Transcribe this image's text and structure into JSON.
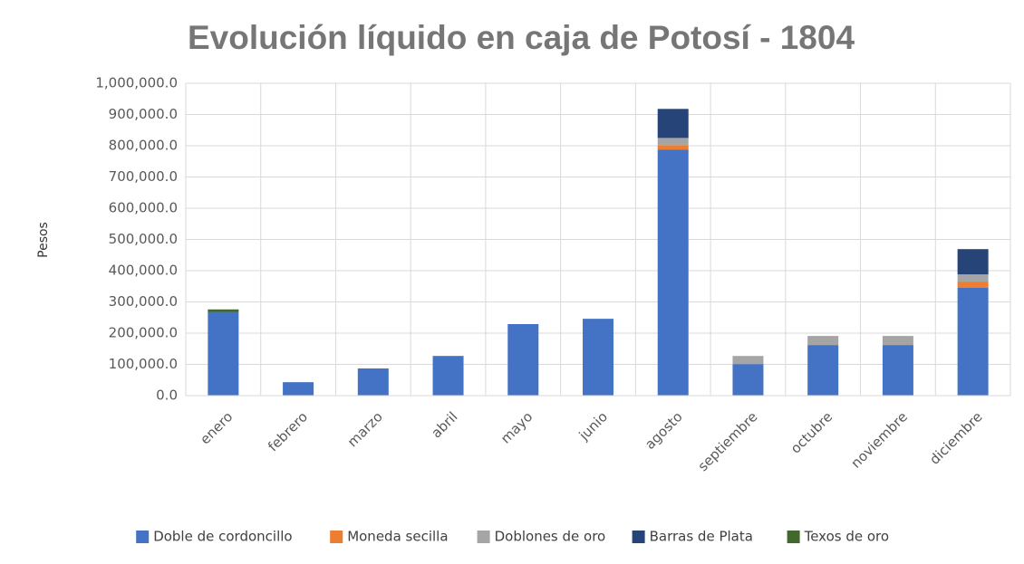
{
  "chart_data": {
    "type": "stacked_bar",
    "title": "Evolución líquido en caja de Potosí - 1804",
    "y_label": "Pesos",
    "categories": [
      "enero",
      "febrero",
      "marzo",
      "abril",
      "mayo",
      "junio",
      "agosto",
      "septiembre",
      "octubre",
      "noviembre",
      "diciembre"
    ],
    "series": [
      {
        "name": "Doble de cordoncillo",
        "color": "#4472c4",
        "values": [
          268000,
          43000,
          87000,
          127000,
          229000,
          246000,
          788000,
          101000,
          162000,
          162000,
          345000
        ]
      },
      {
        "name": "Moneda secilla",
        "color": "#ed7d31",
        "values": [
          null,
          null,
          null,
          null,
          null,
          null,
          14000,
          null,
          null,
          null,
          20000
        ]
      },
      {
        "name": "Doblones de oro",
        "color": "#a5a5a5",
        "values": [
          null,
          null,
          null,
          null,
          null,
          null,
          23000,
          26000,
          29000,
          29000,
          23000
        ]
      },
      {
        "name": "Barras de Plata",
        "color": "#264478",
        "values": [
          null,
          null,
          null,
          null,
          null,
          null,
          93000,
          null,
          null,
          null,
          81000
        ]
      },
      {
        "name": "Texos de oro",
        "color": "#43682b",
        "values": [
          8000,
          null,
          null,
          null,
          null,
          null,
          null,
          null,
          null,
          null,
          null
        ]
      }
    ],
    "ylim": [
      0,
      1000000
    ],
    "yticks": [
      {
        "value": 0,
        "label": "0.0"
      },
      {
        "value": 100000,
        "label": "100,000.0"
      },
      {
        "value": 200000,
        "label": "200,000.0"
      },
      {
        "value": 300000,
        "label": "300,000.0"
      },
      {
        "value": 400000,
        "label": "400,000.0"
      },
      {
        "value": 500000,
        "label": "500,000.0"
      },
      {
        "value": 600000,
        "label": "600,000.0"
      },
      {
        "value": 700000,
        "label": "700,000.0"
      },
      {
        "value": 800000,
        "label": "800,000.0"
      },
      {
        "value": 900000,
        "label": "900,000.0"
      },
      {
        "value": 1000000,
        "label": "1,000,000.0"
      }
    ],
    "grid": true,
    "legend": "bottom"
  }
}
